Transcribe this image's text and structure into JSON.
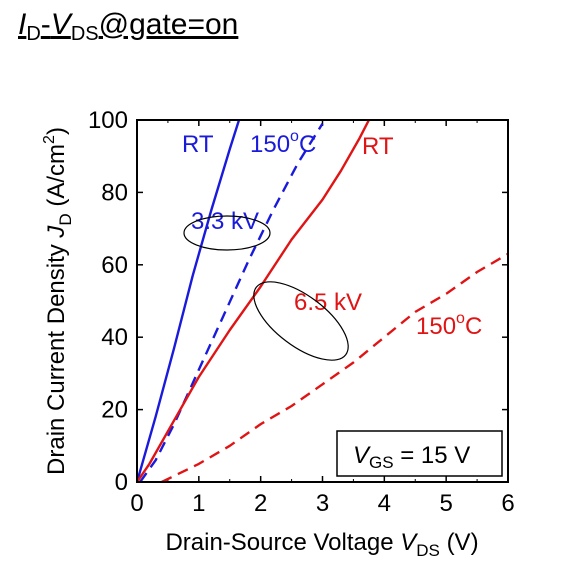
{
  "title": {
    "i": "I",
    "i_sub": "D",
    "dash": "-",
    "v": "V",
    "v_sub": "DS",
    "rest": "@gate=on"
  },
  "chart_data": {
    "type": "line",
    "xlabel": {
      "main": "Drain-Source Voltage",
      "sym": "V",
      "sub": "DS",
      "unit": "(V)"
    },
    "ylabel": {
      "main": "Drain Current Density",
      "sym": "J",
      "sub": "D",
      "unit_pre": "(A/cm",
      "unit_sup": "2",
      "unit_post": ")"
    },
    "xlim": [
      0,
      6
    ],
    "ylim": [
      0,
      100
    ],
    "xticks": [
      "0",
      "1",
      "2",
      "3",
      "4",
      "5",
      "6"
    ],
    "yticks": [
      "0",
      "20",
      "40",
      "60",
      "80",
      "100"
    ],
    "colors": {
      "blue": "#1a1adc",
      "red": "#e01414"
    },
    "series": [
      {
        "group": "3.3 kV",
        "temp": "RT",
        "color": "blue",
        "dash": false,
        "x": [
          0,
          0.1,
          0.3,
          0.6,
          0.9,
          1.2,
          1.5,
          1.65
        ],
        "y": [
          0,
          6,
          18,
          37,
          57,
          75,
          92,
          100
        ]
      },
      {
        "group": "3.3 kV",
        "temp": "150°C",
        "color": "blue",
        "dash": true,
        "x": [
          0.05,
          0.3,
          0.6,
          1.0,
          1.4,
          1.8,
          2.2,
          2.6,
          3.0
        ],
        "y": [
          0,
          6,
          16,
          31,
          46,
          61,
          75,
          88,
          99
        ]
      },
      {
        "group": "6.5 kV",
        "temp": "RT",
        "color": "red",
        "dash": false,
        "x": [
          0,
          0.2,
          0.5,
          1.0,
          1.5,
          2.0,
          2.5,
          3.0,
          3.3,
          3.6,
          3.75
        ],
        "y": [
          0,
          5,
          14,
          29,
          42,
          54,
          67,
          78,
          86,
          95,
          100
        ]
      },
      {
        "group": "6.5 kV",
        "temp": "150°C",
        "color": "red",
        "dash": true,
        "x": [
          0.4,
          1.0,
          1.5,
          2.0,
          2.5,
          3.0,
          3.5,
          4.0,
          4.5,
          5.0,
          5.5,
          6.0
        ],
        "y": [
          0,
          5,
          10,
          16,
          21,
          27,
          33,
          40,
          47,
          52,
          58,
          63
        ]
      }
    ],
    "annotations": {
      "blue_rt": "RT",
      "blue_150_num": "150",
      "blue_150_sup": "o",
      "blue_150_unit": "C",
      "blue_group": "3.3 kV",
      "red_rt": "RT",
      "red_group": "6.5 kV",
      "red_150_num": "150",
      "red_150_sup": "o",
      "red_150_unit": "C"
    },
    "legend_box": {
      "sym": "V",
      "sub": "GS",
      "text": " = 15 V"
    }
  }
}
